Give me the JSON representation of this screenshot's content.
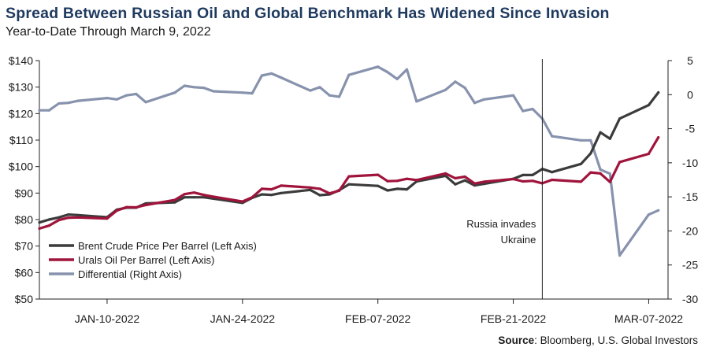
{
  "title": "Spread Between Russian Oil and Global Benchmark Has Widened Since Invasion",
  "subtitle": "Year-to-Date Through March 9, 2022",
  "source_label": "Source",
  "source_text": ": Bloomberg, U.S. Global Investors",
  "chart_data": {
    "type": "line",
    "left_axis": {
      "min": 50,
      "max": 140,
      "ticks": [
        50,
        60,
        70,
        80,
        90,
        100,
        110,
        120,
        130,
        140
      ],
      "tick_labels": [
        "$50",
        "$60",
        "$70",
        "$80",
        "$90",
        "$100",
        "$110",
        "$120",
        "$130",
        "$140"
      ]
    },
    "right_axis": {
      "min": -30,
      "max": 5,
      "ticks": [
        -30,
        -25,
        -20,
        -15,
        -10,
        -5,
        0,
        5
      ],
      "tick_labels": [
        "-30",
        "-25",
        "-20",
        "-15",
        "-10",
        "-5",
        "0",
        "5"
      ]
    },
    "x_axis": {
      "start": "2022-01-03",
      "end": "2022-03-09",
      "tick_dates": [
        "2022-01-10",
        "2022-01-24",
        "2022-02-07",
        "2022-02-21",
        "2022-03-07"
      ],
      "tick_labels": [
        "JAN-10-2022",
        "JAN-24-2022",
        "FEB-07-2022",
        "FEB-21-2022",
        "MAR-07-2022"
      ]
    },
    "annotation": {
      "date": "2022-02-24",
      "lines": [
        "Russia invades",
        "Ukraine"
      ]
    },
    "legend_position": "bottom-left",
    "grid": false,
    "series": [
      {
        "name": "Brent Crude Price Per Barrel (Left Axis)",
        "axis": "left",
        "color": "#3b3b3b",
        "x": [
          "2022-01-03",
          "2022-01-04",
          "2022-01-05",
          "2022-01-06",
          "2022-01-07",
          "2022-01-10",
          "2022-01-11",
          "2022-01-12",
          "2022-01-13",
          "2022-01-14",
          "2022-01-17",
          "2022-01-18",
          "2022-01-19",
          "2022-01-20",
          "2022-01-21",
          "2022-01-24",
          "2022-01-25",
          "2022-01-26",
          "2022-01-27",
          "2022-01-28",
          "2022-01-31",
          "2022-02-01",
          "2022-02-02",
          "2022-02-03",
          "2022-02-04",
          "2022-02-07",
          "2022-02-08",
          "2022-02-09",
          "2022-02-10",
          "2022-02-11",
          "2022-02-14",
          "2022-02-15",
          "2022-02-16",
          "2022-02-17",
          "2022-02-18",
          "2022-02-21",
          "2022-02-22",
          "2022-02-23",
          "2022-02-24",
          "2022-02-25",
          "2022-02-28",
          "2022-03-01",
          "2022-03-02",
          "2022-03-03",
          "2022-03-04",
          "2022-03-07",
          "2022-03-08"
        ],
        "y": [
          78.9,
          80.0,
          80.8,
          81.9,
          81.7,
          80.9,
          83.7,
          84.5,
          84.5,
          86.1,
          86.5,
          88.4,
          88.4,
          88.4,
          87.9,
          86.3,
          88.2,
          89.5,
          89.3,
          90.0,
          91.2,
          89.2,
          89.5,
          91.1,
          93.3,
          92.7,
          91.0,
          91.6,
          91.4,
          94.4,
          96.5,
          93.3,
          94.8,
          92.9,
          93.5,
          95.4,
          96.8,
          96.8,
          99.1,
          97.9,
          100.99,
          104.97,
          112.9,
          110.5,
          118.1,
          123.2,
          127.98
        ]
      },
      {
        "name": "Urals Oil Per Barrel (Left Axis)",
        "axis": "left",
        "color": "#a0143c",
        "x": [
          "2022-01-03",
          "2022-01-04",
          "2022-01-05",
          "2022-01-06",
          "2022-01-07",
          "2022-01-10",
          "2022-01-11",
          "2022-01-12",
          "2022-01-13",
          "2022-01-14",
          "2022-01-17",
          "2022-01-18",
          "2022-01-19",
          "2022-01-20",
          "2022-01-21",
          "2022-01-24",
          "2022-01-25",
          "2022-01-26",
          "2022-01-27",
          "2022-01-28",
          "2022-01-31",
          "2022-02-01",
          "2022-02-02",
          "2022-02-03",
          "2022-02-04",
          "2022-02-07",
          "2022-02-08",
          "2022-02-09",
          "2022-02-10",
          "2022-02-11",
          "2022-02-14",
          "2022-02-15",
          "2022-02-16",
          "2022-02-17",
          "2022-02-18",
          "2022-02-21",
          "2022-02-22",
          "2022-02-23",
          "2022-02-24",
          "2022-02-25",
          "2022-02-28",
          "2022-03-01",
          "2022-03-02",
          "2022-03-03",
          "2022-03-04",
          "2022-03-07",
          "2022-03-08"
        ],
        "y": [
          76.6,
          77.7,
          79.8,
          80.7,
          80.8,
          80.4,
          83.4,
          84.7,
          84.6,
          85.5,
          87.4,
          89.6,
          90.2,
          89.3,
          88.6,
          86.8,
          88.4,
          91.6,
          91.4,
          92.8,
          92.1,
          91.6,
          89.9,
          90.9,
          96.3,
          96.9,
          94.5,
          94.6,
          95.4,
          94.9,
          97.4,
          95.6,
          96.2,
          93.6,
          94.3,
          95.3,
          94.4,
          94.6,
          93.7,
          95.0,
          94.3,
          97.8,
          97.4,
          94.2,
          101.7,
          104.8,
          111.0
        ]
      },
      {
        "name": "Differential (Right Axis)",
        "axis": "right",
        "color": "#8792ad",
        "x": [
          "2022-01-03",
          "2022-01-04",
          "2022-01-05",
          "2022-01-06",
          "2022-01-07",
          "2022-01-10",
          "2022-01-11",
          "2022-01-12",
          "2022-01-13",
          "2022-01-14",
          "2022-01-17",
          "2022-01-18",
          "2022-01-19",
          "2022-01-20",
          "2022-01-21",
          "2022-01-24",
          "2022-01-25",
          "2022-01-26",
          "2022-01-27",
          "2022-01-28",
          "2022-01-31",
          "2022-02-01",
          "2022-02-02",
          "2022-02-03",
          "2022-02-04",
          "2022-02-07",
          "2022-02-08",
          "2022-02-09",
          "2022-02-10",
          "2022-02-11",
          "2022-02-14",
          "2022-02-15",
          "2022-02-16",
          "2022-02-17",
          "2022-02-18",
          "2022-02-21",
          "2022-02-22",
          "2022-02-23",
          "2022-02-24",
          "2022-02-25",
          "2022-02-28",
          "2022-03-01",
          "2022-03-02",
          "2022-03-03",
          "2022-03-04",
          "2022-03-07",
          "2022-03-08"
        ],
        "y": [
          -2.3,
          -2.3,
          -1.3,
          -1.2,
          -0.9,
          -0.5,
          -0.7,
          -0.1,
          0.1,
          -1.1,
          0.3,
          1.3,
          1.1,
          1.0,
          0.5,
          0.3,
          0.2,
          2.8,
          3.1,
          2.5,
          0.6,
          1.1,
          -0.1,
          -0.3,
          2.9,
          4.1,
          3.3,
          2.3,
          3.7,
          -1.0,
          0.7,
          1.9,
          1.0,
          -1.2,
          -0.7,
          -0.1,
          -2.4,
          -2.1,
          -3.5,
          -6.1,
          -6.7,
          -6.7,
          -11.0,
          -11.6,
          -23.6,
          -17.6,
          -16.98
        ]
      }
    ]
  }
}
